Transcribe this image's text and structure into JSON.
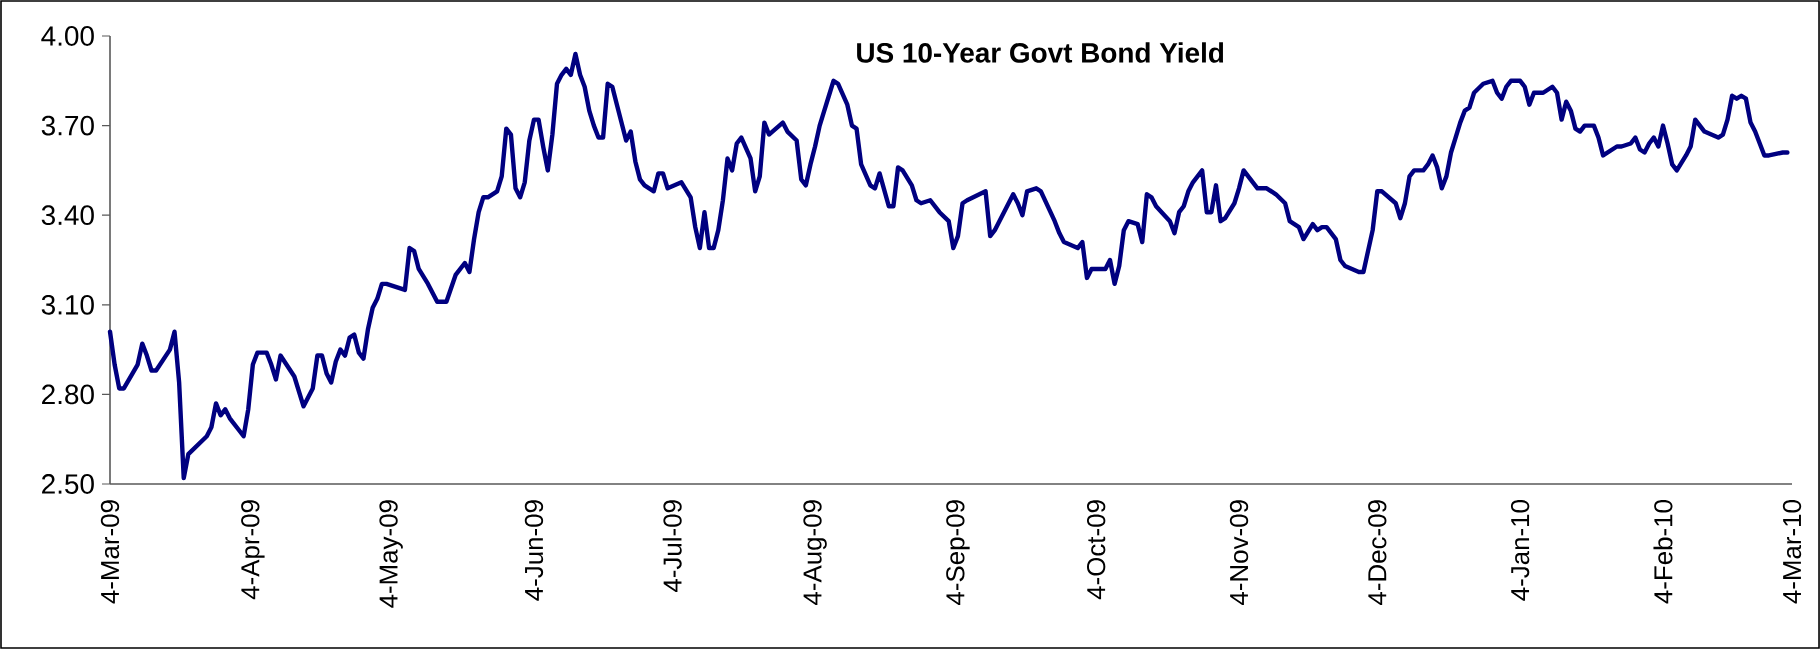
{
  "chart_data": {
    "type": "line",
    "title": "US 10-Year Govt Bond Yield",
    "xlim": [
      "2009-03-04",
      "2010-03-04"
    ],
    "xticks": [
      {
        "value": "2009-03-04",
        "label": "4-Mar-09"
      },
      {
        "value": "2009-04-04",
        "label": "4-Apr-09"
      },
      {
        "value": "2009-05-04",
        "label": "4-May-09"
      },
      {
        "value": "2009-06-04",
        "label": "4-Jun-09"
      },
      {
        "value": "2009-07-04",
        "label": "4-Jul-09"
      },
      {
        "value": "2009-08-04",
        "label": "4-Aug-09"
      },
      {
        "value": "2009-09-04",
        "label": "4-Sep-09"
      },
      {
        "value": "2009-10-04",
        "label": "4-Oct-09"
      },
      {
        "value": "2009-11-04",
        "label": "4-Nov-09"
      },
      {
        "value": "2009-12-04",
        "label": "4-Dec-09"
      },
      {
        "value": "2010-01-04",
        "label": "4-Jan-10"
      },
      {
        "value": "2010-02-04",
        "label": "4-Feb-10"
      },
      {
        "value": "2010-03-04",
        "label": "4-Mar-10"
      }
    ],
    "ylim": [
      2.5,
      4.0
    ],
    "yticks": [
      {
        "value": 2.5,
        "label": "2.50"
      },
      {
        "value": 2.8,
        "label": "2.80"
      },
      {
        "value": 3.1,
        "label": "3.10"
      },
      {
        "value": 3.4,
        "label": "3.40"
      },
      {
        "value": 3.7,
        "label": "3.70"
      },
      {
        "value": 4.0,
        "label": "4.00"
      }
    ],
    "line_style": "solid",
    "series": [
      {
        "color": "#000080",
        "x": [
          "2009-03-04",
          "2009-03-05",
          "2009-03-06",
          "2009-03-07",
          "2009-03-10",
          "2009-03-11",
          "2009-03-12",
          "2009-03-13",
          "2009-03-14",
          "2009-03-17",
          "2009-03-18",
          "2009-03-19",
          "2009-03-20",
          "2009-03-21",
          "2009-03-25",
          "2009-03-26",
          "2009-03-27",
          "2009-03-28",
          "2009-03-29",
          "2009-03-30",
          "2009-04-01",
          "2009-04-02",
          "2009-04-03",
          "2009-04-04",
          "2009-04-05",
          "2009-04-07",
          "2009-04-08",
          "2009-04-09",
          "2009-04-10",
          "2009-04-13",
          "2009-04-15",
          "2009-04-17",
          "2009-04-18",
          "2009-04-19",
          "2009-04-20",
          "2009-04-21",
          "2009-04-22",
          "2009-04-23",
          "2009-04-24",
          "2009-04-25",
          "2009-04-26",
          "2009-04-27",
          "2009-04-28",
          "2009-04-29",
          "2009-04-30",
          "2009-05-01",
          "2009-05-02",
          "2009-05-03",
          "2009-05-07",
          "2009-05-08",
          "2009-05-09",
          "2009-05-10",
          "2009-05-12",
          "2009-05-14",
          "2009-05-16",
          "2009-05-18",
          "2009-05-20",
          "2009-05-21",
          "2009-05-22",
          "2009-05-23",
          "2009-05-24",
          "2009-05-25",
          "2009-05-27",
          "2009-05-28",
          "2009-05-29",
          "2009-05-30",
          "2009-05-31",
          "2009-06-01",
          "2009-06-02",
          "2009-06-03",
          "2009-06-04",
          "2009-06-05",
          "2009-06-06",
          "2009-06-07",
          "2009-06-08",
          "2009-06-09",
          "2009-06-10",
          "2009-06-11",
          "2009-06-12",
          "2009-06-13",
          "2009-06-14",
          "2009-06-15",
          "2009-06-16",
          "2009-06-17",
          "2009-06-18",
          "2009-06-19",
          "2009-06-20",
          "2009-06-21",
          "2009-06-22",
          "2009-06-23",
          "2009-06-24",
          "2009-06-25",
          "2009-06-26",
          "2009-06-27",
          "2009-06-28",
          "2009-06-30",
          "2009-07-01",
          "2009-07-02",
          "2009-07-03",
          "2009-07-06",
          "2009-07-08",
          "2009-07-09",
          "2009-07-10",
          "2009-07-11",
          "2009-07-12",
          "2009-07-13",
          "2009-07-14",
          "2009-07-15",
          "2009-07-16",
          "2009-07-17",
          "2009-07-18",
          "2009-07-19",
          "2009-07-21",
          "2009-07-22",
          "2009-07-23",
          "2009-07-24",
          "2009-07-25",
          "2009-07-28",
          "2009-07-29",
          "2009-07-31",
          "2009-08-01",
          "2009-08-02",
          "2009-08-03",
          "2009-08-04",
          "2009-08-05",
          "2009-08-06",
          "2009-08-07",
          "2009-08-08",
          "2009-08-09",
          "2009-08-11",
          "2009-08-12",
          "2009-08-13",
          "2009-08-14",
          "2009-08-16",
          "2009-08-17",
          "2009-08-18",
          "2009-08-20",
          "2009-08-21",
          "2009-08-22",
          "2009-08-23",
          "2009-08-25",
          "2009-08-26",
          "2009-08-27",
          "2009-08-29",
          "2009-08-31",
          "2009-09-02",
          "2009-09-03",
          "2009-09-04",
          "2009-09-05",
          "2009-09-06",
          "2009-09-10",
          "2009-09-11",
          "2009-09-12",
          "2009-09-16",
          "2009-09-17",
          "2009-09-18",
          "2009-09-19",
          "2009-09-21",
          "2009-09-22",
          "2009-09-25",
          "2009-09-26",
          "2009-09-27",
          "2009-09-30",
          "2009-10-01",
          "2009-10-02",
          "2009-10-03",
          "2009-10-06",
          "2009-10-07",
          "2009-10-08",
          "2009-10-09",
          "2009-10-10",
          "2009-10-11",
          "2009-10-13",
          "2009-10-14",
          "2009-10-15",
          "2009-10-16",
          "2009-10-17",
          "2009-10-20",
          "2009-10-21",
          "2009-10-22",
          "2009-10-23",
          "2009-10-24",
          "2009-10-25",
          "2009-10-27",
          "2009-10-28",
          "2009-10-29",
          "2009-10-30",
          "2009-10-31",
          "2009-11-01",
          "2009-11-03",
          "2009-11-04",
          "2009-11-05",
          "2009-11-08",
          "2009-11-10",
          "2009-11-12",
          "2009-11-14",
          "2009-11-15",
          "2009-11-17",
          "2009-11-18",
          "2009-11-20",
          "2009-11-21",
          "2009-11-22",
          "2009-11-23",
          "2009-11-25",
          "2009-11-26",
          "2009-11-27",
          "2009-11-30",
          "2009-12-01",
          "2009-12-02",
          "2009-12-03",
          "2009-12-04",
          "2009-12-05",
          "2009-12-08",
          "2009-12-09",
          "2009-12-10",
          "2009-12-11",
          "2009-12-12",
          "2009-12-14",
          "2009-12-15",
          "2009-12-16",
          "2009-12-17",
          "2009-12-18",
          "2009-12-19",
          "2009-12-20",
          "2009-12-21",
          "2009-12-22",
          "2009-12-23",
          "2009-12-24",
          "2009-12-25",
          "2009-12-27",
          "2009-12-29",
          "2009-12-30",
          "2009-12-31",
          "2010-01-01",
          "2010-01-02",
          "2010-01-04",
          "2010-01-05",
          "2010-01-06",
          "2010-01-07",
          "2010-01-09",
          "2010-01-11",
          "2010-01-12",
          "2010-01-13",
          "2010-01-14",
          "2010-01-15",
          "2010-01-16",
          "2010-01-17",
          "2010-01-18",
          "2010-01-20",
          "2010-01-21",
          "2010-01-22",
          "2010-01-25",
          "2010-01-26",
          "2010-01-28",
          "2010-01-29",
          "2010-01-30",
          "2010-01-31",
          "2010-02-01",
          "2010-02-02",
          "2010-02-03",
          "2010-02-04",
          "2010-02-05",
          "2010-02-06",
          "2010-02-07",
          "2010-02-09",
          "2010-02-10",
          "2010-02-11",
          "2010-02-13",
          "2010-02-16",
          "2010-02-17",
          "2010-02-18",
          "2010-02-19",
          "2010-02-20",
          "2010-02-21",
          "2010-02-22",
          "2010-02-23",
          "2010-02-24",
          "2010-02-25",
          "2010-02-26",
          "2010-02-27",
          "2010-03-02",
          "2010-03-03"
        ],
        "values": [
          3.01,
          2.9,
          2.82,
          2.82,
          2.9,
          2.97,
          2.93,
          2.88,
          2.88,
          2.95,
          3.01,
          2.84,
          2.52,
          2.6,
          2.66,
          2.69,
          2.77,
          2.73,
          2.75,
          2.72,
          2.68,
          2.66,
          2.75,
          2.9,
          2.94,
          2.94,
          2.9,
          2.85,
          2.93,
          2.86,
          2.76,
          2.82,
          2.93,
          2.93,
          2.87,
          2.84,
          2.91,
          2.95,
          2.93,
          2.99,
          3.0,
          2.94,
          2.92,
          3.02,
          3.09,
          3.12,
          3.17,
          3.17,
          3.15,
          3.29,
          3.28,
          3.22,
          3.17,
          3.11,
          3.11,
          3.2,
          3.24,
          3.21,
          3.32,
          3.41,
          3.46,
          3.46,
          3.48,
          3.53,
          3.69,
          3.67,
          3.49,
          3.46,
          3.51,
          3.65,
          3.72,
          3.72,
          3.63,
          3.55,
          3.67,
          3.84,
          3.87,
          3.89,
          3.87,
          3.94,
          3.87,
          3.83,
          3.75,
          3.7,
          3.66,
          3.66,
          3.84,
          3.83,
          3.77,
          3.71,
          3.65,
          3.68,
          3.58,
          3.52,
          3.5,
          3.48,
          3.54,
          3.54,
          3.49,
          3.51,
          3.46,
          3.36,
          3.29,
          3.41,
          3.29,
          3.29,
          3.35,
          3.45,
          3.59,
          3.55,
          3.64,
          3.66,
          3.59,
          3.48,
          3.53,
          3.71,
          3.67,
          3.71,
          3.68,
          3.65,
          3.52,
          3.5,
          3.57,
          3.63,
          3.7,
          3.75,
          3.8,
          3.85,
          3.84,
          3.77,
          3.7,
          3.69,
          3.57,
          3.5,
          3.49,
          3.54,
          3.43,
          3.43,
          3.56,
          3.55,
          3.5,
          3.45,
          3.44,
          3.45,
          3.41,
          3.38,
          3.29,
          3.33,
          3.44,
          3.45,
          3.48,
          3.33,
          3.35,
          3.47,
          3.44,
          3.4,
          3.48,
          3.49,
          3.48,
          3.38,
          3.34,
          3.31,
          3.29,
          3.31,
          3.19,
          3.22,
          3.22,
          3.25,
          3.17,
          3.23,
          3.35,
          3.38,
          3.37,
          3.31,
          3.47,
          3.46,
          3.43,
          3.38,
          3.34,
          3.41,
          3.43,
          3.48,
          3.51,
          3.55,
          3.41,
          3.41,
          3.5,
          3.38,
          3.39,
          3.44,
          3.49,
          3.55,
          3.49,
          3.49,
          3.47,
          3.44,
          3.38,
          3.36,
          3.32,
          3.37,
          3.35,
          3.36,
          3.36,
          3.32,
          3.25,
          3.23,
          3.21,
          3.21,
          3.28,
          3.35,
          3.48,
          3.48,
          3.44,
          3.39,
          3.44,
          3.53,
          3.55,
          3.55,
          3.57,
          3.6,
          3.56,
          3.49,
          3.53,
          3.61,
          3.66,
          3.71,
          3.75,
          3.76,
          3.81,
          3.84,
          3.85,
          3.81,
          3.79,
          3.83,
          3.85,
          3.85,
          3.83,
          3.77,
          3.81,
          3.81,
          3.83,
          3.81,
          3.72,
          3.78,
          3.75,
          3.69,
          3.68,
          3.7,
          3.7,
          3.66,
          3.6,
          3.63,
          3.63,
          3.64,
          3.66,
          3.62,
          3.61,
          3.64,
          3.66,
          3.63,
          3.7,
          3.64,
          3.57,
          3.55,
          3.6,
          3.63,
          3.72,
          3.68,
          3.66,
          3.67,
          3.72,
          3.8,
          3.79,
          3.8,
          3.79,
          3.71,
          3.68,
          3.64,
          3.6,
          3.6,
          3.61,
          3.61
        ]
      }
    ]
  }
}
